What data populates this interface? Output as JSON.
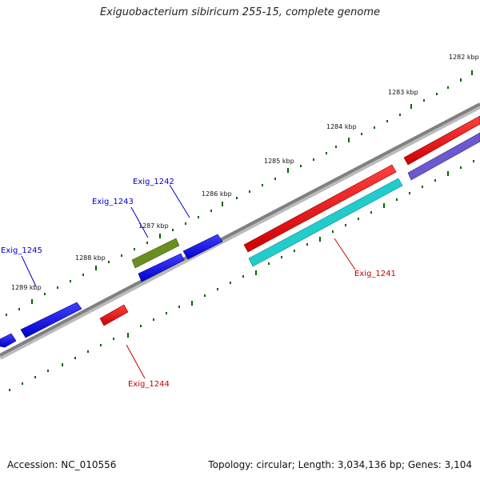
{
  "title": "Exiguobacterium sibiricum 255-15, complete genome",
  "footer": {
    "accession": "Accession: NC_010556",
    "topology": "Topology: circular; Length: 3,034,136 bp; Genes: 3,104"
  },
  "ticks": [
    "1282 kbp",
    "1283 kbp",
    "1284 kbp",
    "1285 kbp",
    "1286 kbp",
    "1287 kbp",
    "1288 kbp",
    "1289 kbp"
  ],
  "genes": [
    {
      "label": "Exig_1241",
      "color": "#cc0000"
    },
    {
      "label": "Exig_1242",
      "color": "#0000cc"
    },
    {
      "label": "Exig_1243",
      "color": "#0000cc"
    },
    {
      "label": "Exig_1244",
      "color": "#cc0000"
    },
    {
      "label": "Exig_1245",
      "color": "#0000cc"
    }
  ],
  "colors": {
    "backbone": "#808080",
    "tick": "#006600",
    "forward_gene": "#0000ee",
    "reverse_gene": "#ee0000",
    "cyan_gene": "#22cccc",
    "olive_gene": "#6b8e23",
    "purple_gene": "#6a5acd"
  }
}
